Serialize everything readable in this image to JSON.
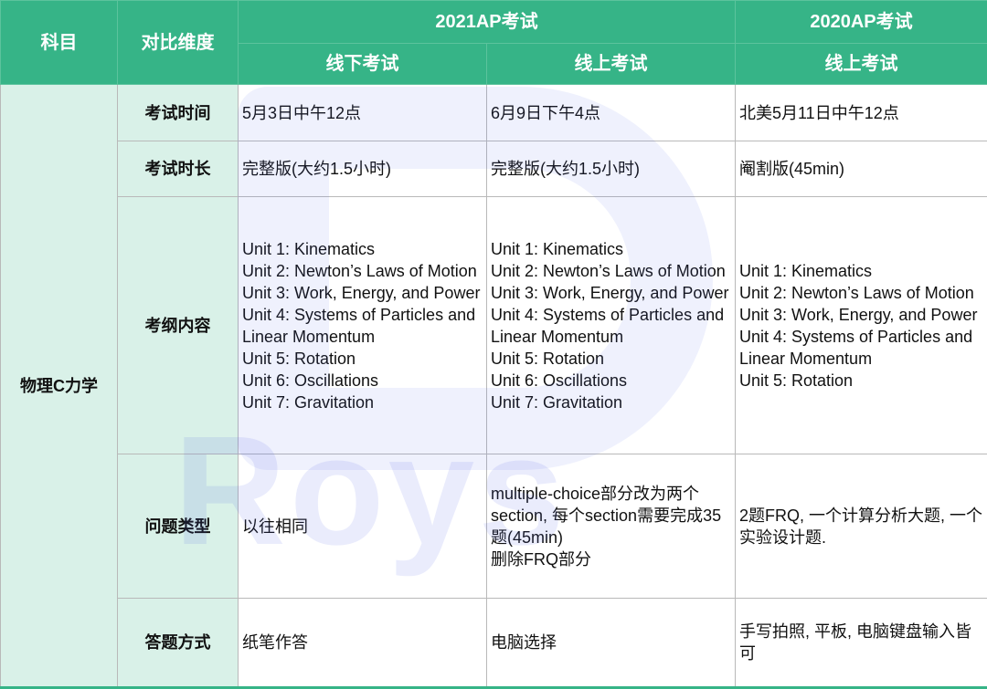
{
  "header": {
    "subject": "科目",
    "dimension": "对比维度",
    "year2021": "2021AP考试",
    "year2020": "2020AP考试",
    "offline2021": "线下考试",
    "online2021": "线上考试",
    "online2020": "线上考试"
  },
  "subject": "物理C力学",
  "rows": [
    {
      "label": "考试时间",
      "c1": "5月3日中午12点",
      "c2": "6月9日下午4点",
      "c3": "北美5月11日中午12点"
    },
    {
      "label": "考试时长",
      "c1": "完整版(大约1.5小时)",
      "c2": "完整版(大约1.5小时)",
      "c3": "阉割版(45min)"
    },
    {
      "label": "考纲内容",
      "c1": [
        "Unit 1: Kinematics",
        "Unit 2: Newton’s Laws of Motion",
        "Unit 3: Work, Energy, and Power",
        "Unit 4: Systems of Particles and Linear Momentum",
        "Unit 5: Rotation",
        "Unit 6: Oscillations",
        "Unit 7: Gravitation"
      ],
      "c2": [
        "Unit 1: Kinematics",
        "Unit 2: Newton’s Laws of Motion",
        "Unit 3: Work, Energy, and Power",
        "Unit 4: Systems of Particles and Linear Momentum",
        "Unit 5: Rotation",
        "Unit 6: Oscillations",
        "Unit 7: Gravitation"
      ],
      "c3": [
        "Unit 1: Kinematics",
        "Unit 2: Newton’s Laws of Motion",
        "Unit 3: Work, Energy, and Power",
        "Unit 4: Systems of Particles and Linear Momentum",
        "Unit 5: Rotation"
      ]
    },
    {
      "label": "问题类型",
      "c1": "以往相同",
      "c2": [
        "multiple-choice部分改为两个section, 每个section需要完成35题(45min)",
        "删除FRQ部分"
      ],
      "c3": "2题FRQ, 一个计算分析大题, 一个实验设计题."
    },
    {
      "label": "答题方式",
      "c1": "纸笔作答",
      "c2": "电脑选择",
      "c3": "手写拍照, 平板, 电脑键盘输入皆可"
    }
  ],
  "watermark": "Roys",
  "colors": {
    "header": "#36b487",
    "side": "#d9f1e8"
  }
}
